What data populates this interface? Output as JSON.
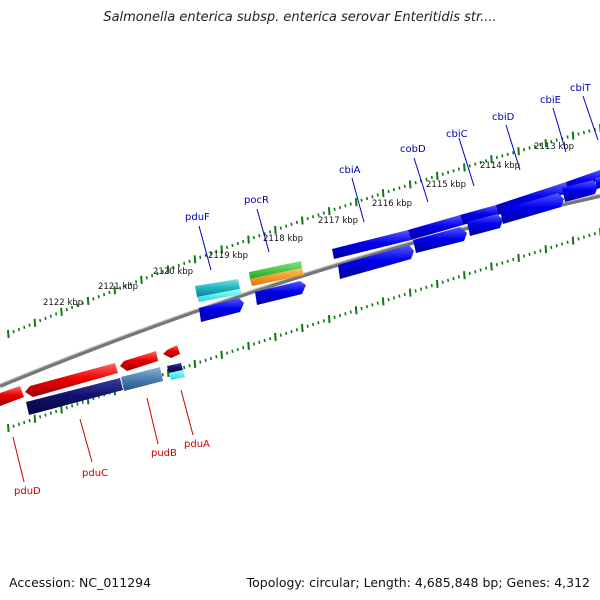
{
  "title": "Salmonella enterica subsp. enterica serovar Enteritidis str....",
  "footer": {
    "accession": "Accession: NC_011294",
    "info": "Topology: circular; Length: 4,685,848 bp; Genes: 4,312"
  },
  "colors": {
    "forward_cds": "#0000ee",
    "reverse_cds": "#ee0000",
    "forward_label": "#0000aa",
    "reverse_label": "#cc0000",
    "tick": "#117711",
    "backbone": "#888888"
  },
  "scale_labels": [
    "2122 kbp",
    "2121 kbp",
    "2120 kbp",
    "2119 kbp",
    "2118 kbp",
    "2117 kbp",
    "2116 kbp",
    "2115 kbp",
    "2114 kbp",
    "2113 kbp"
  ],
  "forward_genes": [
    "pduF",
    "pocR",
    "cbiA",
    "cobD",
    "cbiC",
    "cbiD",
    "cbiE",
    "cbiT"
  ],
  "reverse_genes": [
    "pduD",
    "pduC",
    "pudB",
    "pduA"
  ]
}
